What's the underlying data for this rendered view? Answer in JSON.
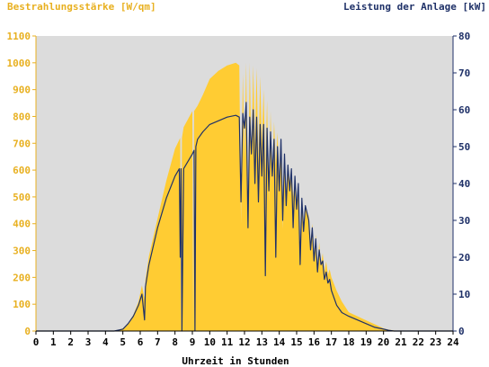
{
  "chart_data": {
    "type": "area",
    "left_axis_title": "Bestrahlungsstärke [W/qm]",
    "right_axis_title": "Leistung der Anlage [kW]",
    "xlabel": "Uhrzeit in Stunden",
    "xlim": [
      0,
      24
    ],
    "x_ticks": [
      0,
      1,
      2,
      3,
      4,
      5,
      6,
      7,
      8,
      9,
      10,
      11,
      12,
      13,
      14,
      15,
      16,
      17,
      18,
      19,
      20,
      21,
      22,
      23,
      24
    ],
    "ylim_left": [
      0,
      1100
    ],
    "y_ticks_left": [
      0,
      100,
      200,
      300,
      400,
      500,
      600,
      700,
      800,
      900,
      1000,
      1100
    ],
    "ylim_right": [
      0,
      80
    ],
    "y_ticks_right": [
      0,
      10,
      20,
      30,
      40,
      50,
      60,
      70,
      80
    ],
    "grid": false,
    "colors": {
      "plot_background": "#dcdcdc",
      "irradiance": "#ffcc33",
      "power": "#1f3168",
      "left_axis": "#e8b020",
      "right_axis": "#1f3168"
    },
    "series": [
      {
        "name": "Bestrahlungsstärke",
        "axis": "left",
        "x": [
          0,
          4.5,
          5,
          5.3,
          5.6,
          5.9,
          6.1,
          6.25,
          6.3,
          6.5,
          7,
          7.5,
          8,
          8.3,
          8.35,
          8.4,
          8.5,
          9,
          9.05,
          9.1,
          9.3,
          9.6,
          10,
          10.5,
          11,
          11.5,
          11.7,
          11.8,
          11.9,
          12,
          12.1,
          12.2,
          12.3,
          12.4,
          12.5,
          12.6,
          12.7,
          12.8,
          12.9,
          13,
          13.1,
          13.2,
          13.3,
          13.4,
          13.5,
          13.6,
          13.7,
          13.8,
          13.9,
          14,
          14.1,
          14.2,
          14.3,
          14.4,
          14.5,
          14.6,
          14.7,
          14.8,
          14.9,
          15,
          15.1,
          15.2,
          15.3,
          15.4,
          15.5,
          15.6,
          15.7,
          15.8,
          15.9,
          16,
          16.1,
          16.2,
          16.3,
          16.4,
          16.5,
          16.6,
          16.7,
          16.8,
          16.9,
          17,
          17.3,
          17.6,
          18,
          18.5,
          19,
          19.5,
          20,
          20.3,
          20.6,
          21,
          24
        ],
        "y": [
          0,
          0,
          10,
          30,
          60,
          110,
          170,
          120,
          190,
          280,
          420,
          560,
          680,
          720,
          0,
          720,
          760,
          820,
          0,
          820,
          840,
          880,
          940,
          970,
          990,
          1000,
          990,
          400,
          960,
          640,
          1000,
          380,
          1000,
          650,
          990,
          700,
          980,
          640,
          950,
          700,
          900,
          600,
          860,
          480,
          820,
          560,
          780,
          620,
          740,
          560,
          690,
          380,
          660,
          480,
          620,
          560,
          600,
          500,
          560,
          460,
          530,
          300,
          500,
          380,
          470,
          440,
          430,
          330,
          400,
          280,
          360,
          240,
          330,
          250,
          290,
          220,
          260,
          210,
          230,
          200,
          150,
          110,
          70,
          55,
          40,
          25,
          10,
          5,
          2,
          0,
          0
        ]
      },
      {
        "name": "Leistung der Anlage",
        "axis": "right",
        "x": [
          0,
          4.5,
          5,
          5.3,
          5.6,
          5.9,
          6.1,
          6.25,
          6.3,
          6.5,
          7,
          7.5,
          8,
          8.25,
          8.3,
          8.35,
          8.4,
          8.5,
          9,
          9.1,
          9.15,
          9.2,
          9.3,
          9.6,
          10,
          10.5,
          11,
          11.5,
          11.7,
          11.8,
          11.9,
          12,
          12.1,
          12.2,
          12.3,
          12.4,
          12.5,
          12.6,
          12.7,
          12.8,
          12.9,
          13,
          13.1,
          13.2,
          13.3,
          13.4,
          13.5,
          13.6,
          13.7,
          13.8,
          13.9,
          14,
          14.1,
          14.2,
          14.3,
          14.4,
          14.5,
          14.6,
          14.7,
          14.8,
          14.9,
          15,
          15.1,
          15.2,
          15.3,
          15.4,
          15.5,
          15.6,
          15.7,
          15.8,
          15.9,
          16,
          16.1,
          16.2,
          16.3,
          16.4,
          16.5,
          16.6,
          16.7,
          16.8,
          16.9,
          17,
          17.3,
          17.6,
          18,
          18.5,
          19,
          19.5,
          20,
          20.3,
          20.6,
          21,
          24
        ],
        "y": [
          0,
          0,
          0.5,
          2,
          4,
          7,
          10,
          3,
          12,
          18,
          28,
          36,
          42,
          44,
          20,
          44,
          0,
          44,
          48,
          49,
          0,
          50,
          52,
          54,
          56,
          57,
          58,
          58.5,
          58,
          35,
          59,
          55,
          62,
          28,
          58,
          48,
          60,
          40,
          58,
          35,
          56,
          42,
          56,
          15,
          55,
          38,
          54,
          42,
          52,
          20,
          50,
          38,
          52,
          30,
          48,
          34,
          45,
          38,
          44,
          28,
          42,
          33,
          40,
          18,
          36,
          27,
          34,
          32,
          30,
          22,
          28,
          19,
          25,
          16,
          22,
          18,
          19,
          14,
          16,
          13,
          14,
          11,
          7,
          5,
          4,
          3,
          2,
          1,
          0.5,
          0.2,
          0,
          0,
          0
        ]
      }
    ]
  }
}
